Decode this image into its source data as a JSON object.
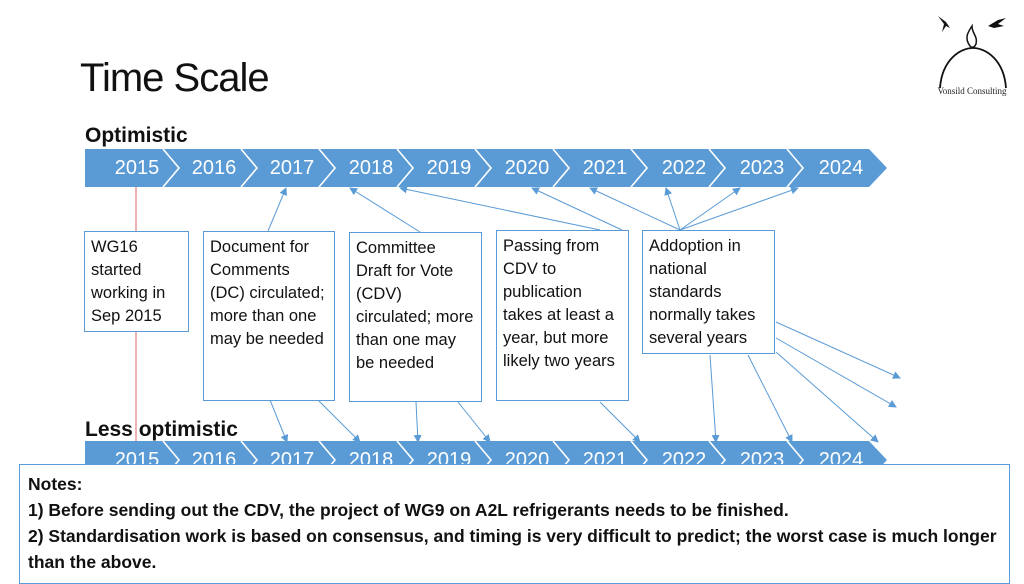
{
  "title": "Time Scale",
  "logo": {
    "name": "Vonsild Consulting"
  },
  "optimistic": {
    "label": "Optimistic",
    "years": [
      "2015",
      "2016",
      "2017",
      "2018",
      "2019",
      "2020",
      "2021",
      "2022",
      "2023",
      "2024"
    ]
  },
  "less_optimistic": {
    "label": "Less optimistic",
    "years": [
      "2015",
      "2016",
      "2017",
      "2018",
      "2019",
      "2020",
      "2021",
      "2022",
      "2023",
      "2024"
    ]
  },
  "boxes": [
    {
      "text": "WG16 started working in Sep 2015"
    },
    {
      "text": "Document for Comments (DC) circulated; more than one may be needed"
    },
    {
      "text": "Committee Draft for Vote (CDV) circulated; more than one may be needed"
    },
    {
      "text": "Passing from CDV to publication takes at least a year, but more likely two years"
    },
    {
      "text": "Addoption in national standards normally takes several years"
    }
  ],
  "notes": {
    "heading": "Notes:",
    "items": [
      "1) Before sending out the CDV, the project of WG9 on A2L refrigerants needs to be finished.",
      "2) Standardisation work is based on consensus, and timing is very difficult to predict; the worst case is much longer than the above."
    ]
  },
  "colors": {
    "timeline": "#5b9bd5",
    "connector": "#5b9bd5",
    "start_line": "#e06666"
  }
}
